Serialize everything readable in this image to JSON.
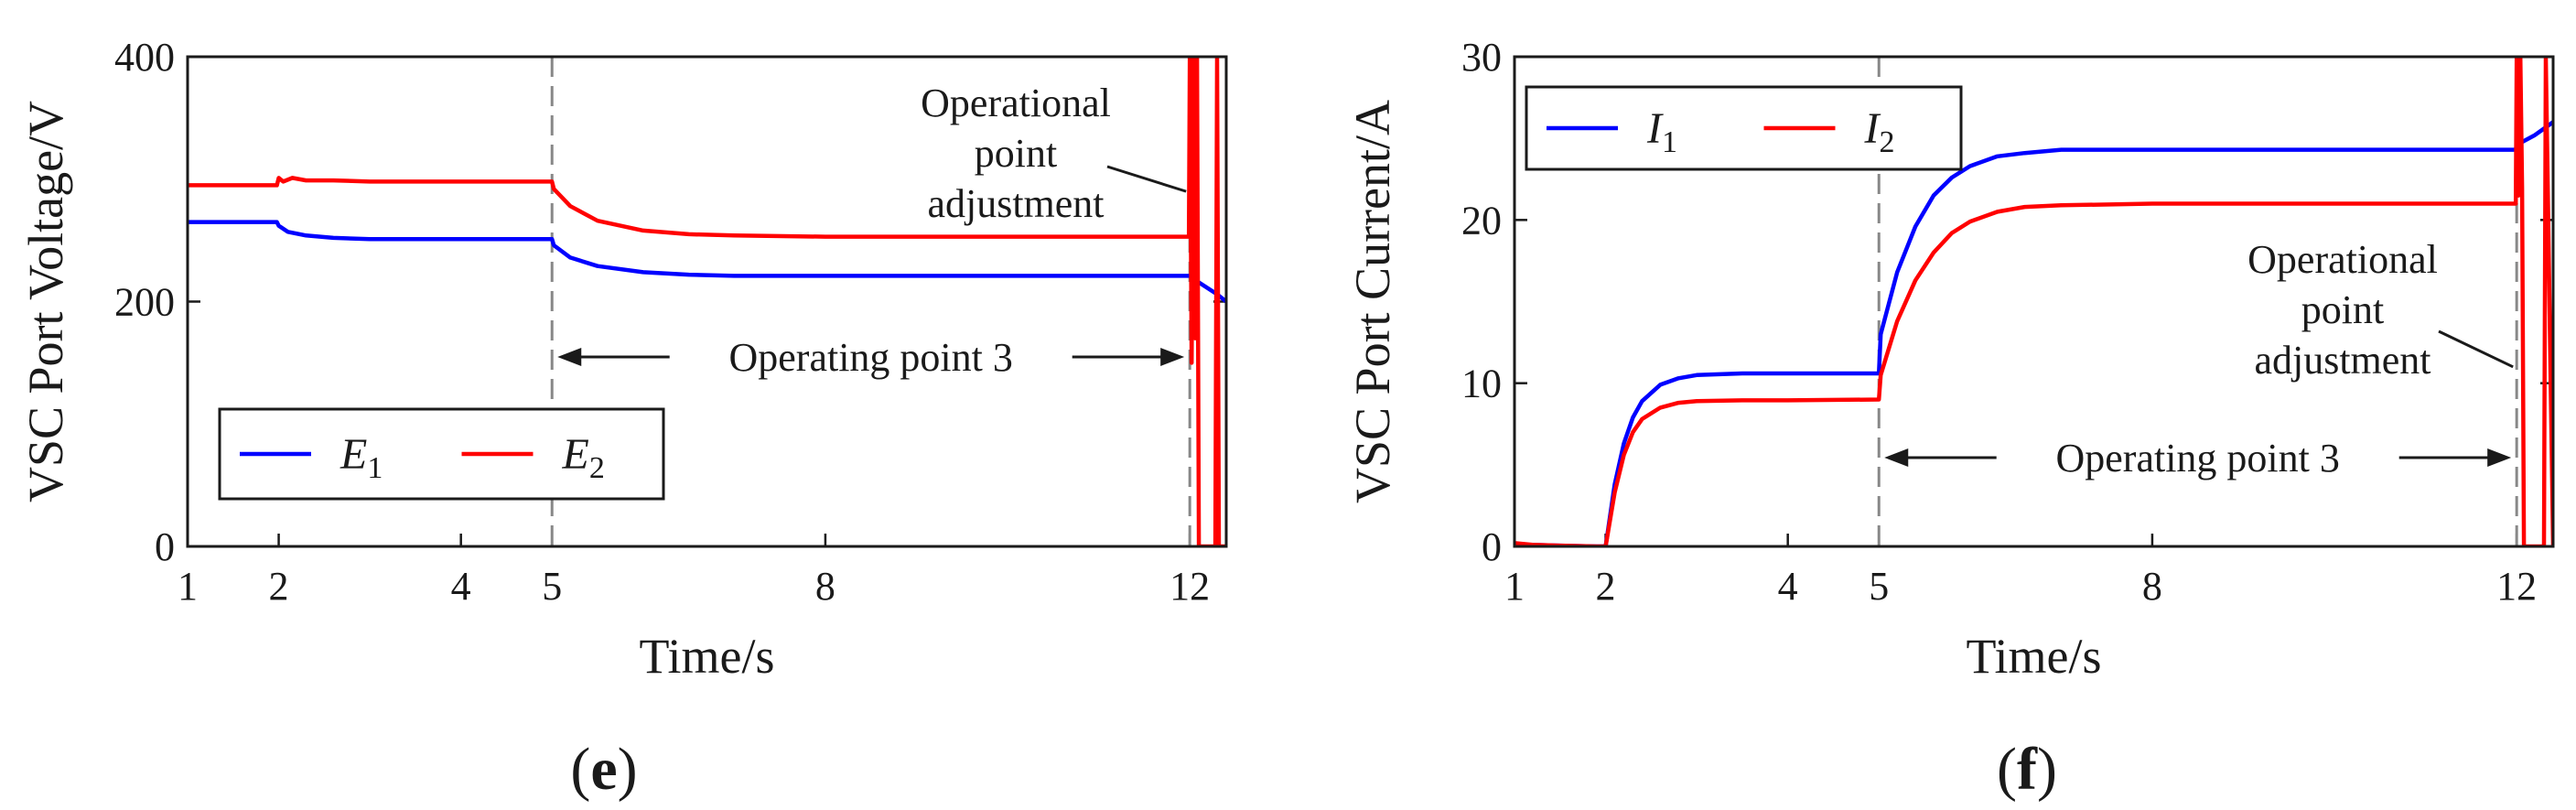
{
  "chart_data": [
    {
      "type": "line",
      "panel_label": "(e)",
      "xlabel": "Time/s",
      "ylabel": "VSC Port Voltage/V",
      "xlim": [
        1,
        12.4
      ],
      "ylim": [
        0,
        400
      ],
      "xticks": [
        1,
        2,
        4,
        5,
        8,
        12
      ],
      "yticks": [
        0,
        200,
        400
      ],
      "dashed_markers": [
        5,
        12
      ],
      "arrow_label": "Operating point 3",
      "arrow_span": [
        5,
        12
      ],
      "annotation": {
        "lines": [
          "Operational",
          "point",
          "adjustment"
        ],
        "points_to": [
          12,
          290
        ]
      },
      "legend": {
        "position": "bottom-left"
      },
      "series": [
        {
          "label": "E",
          "sub": "1",
          "color": "#0000ff",
          "x": [
            1,
            1.5,
            1.98,
            2.0,
            2.1,
            2.3,
            2.6,
            3,
            4,
            5,
            5.02,
            5.2,
            5.5,
            6,
            6.5,
            7,
            8,
            10,
            12,
            12.05,
            12.3,
            12.4
          ],
          "y": [
            265,
            265,
            265,
            262,
            257,
            254,
            252,
            251,
            251,
            251,
            246,
            236,
            229,
            224,
            222,
            221,
            221,
            221,
            221,
            218,
            206,
            200
          ]
        },
        {
          "label": "E",
          "sub": "2",
          "color": "#ff0000",
          "x": [
            1,
            1.5,
            1.98,
            2.0,
            2.05,
            2.15,
            2.3,
            2.6,
            3,
            4,
            5,
            5.02,
            5.2,
            5.5,
            6,
            6.5,
            7,
            8,
            10,
            11.99,
            12.0,
            12.02,
            12.04,
            12.06,
            12.08,
            12.1,
            12.28,
            12.3,
            12.32,
            12.4
          ],
          "y": [
            295,
            295,
            295,
            301,
            298,
            301,
            299,
            299,
            298,
            298,
            298,
            292,
            278,
            266,
            258,
            255,
            254,
            253,
            253,
            253,
            400,
            150,
            400,
            170,
            400,
            0,
            0,
            400,
            0,
            0
          ]
        }
      ]
    },
    {
      "type": "line",
      "panel_label": "(f)",
      "xlabel": "Time/s",
      "ylabel": "VSC Port Current/A",
      "xlim": [
        1,
        12.4
      ],
      "ylim": [
        0,
        30
      ],
      "xticks": [
        1,
        2,
        4,
        5,
        8,
        12
      ],
      "yticks": [
        0,
        10,
        20,
        30
      ],
      "dashed_markers": [
        5,
        12
      ],
      "arrow_label": "Operating point 3",
      "arrow_span": [
        5,
        12
      ],
      "annotation": {
        "lines": [
          "Operational",
          "point",
          "adjustment"
        ],
        "points_to": [
          12,
          11
        ]
      },
      "legend": {
        "position": "top-left"
      },
      "series": [
        {
          "label": "I",
          "sub": "1",
          "color": "#0000ff",
          "x": [
            1,
            1.2,
            1.5,
            1.9,
            2.0,
            2.1,
            2.2,
            2.3,
            2.4,
            2.6,
            2.8,
            3.0,
            3.5,
            4,
            5,
            5.02,
            5.2,
            5.4,
            5.6,
            5.8,
            6.0,
            6.3,
            6.6,
            7,
            8,
            10,
            11.99,
            12.0,
            12.1,
            12.2,
            12.3,
            12.4
          ],
          "y": [
            0.1,
            0.1,
            0.05,
            0,
            0,
            3.8,
            6.3,
            7.9,
            8.9,
            9.9,
            10.3,
            10.5,
            10.6,
            10.6,
            10.6,
            13.0,
            16.8,
            19.6,
            21.5,
            22.6,
            23.3,
            23.9,
            24.1,
            24.3,
            24.3,
            24.3,
            24.3,
            24.6,
            24.9,
            25.2,
            25.6,
            26.0
          ]
        },
        {
          "label": "I",
          "sub": "2",
          "color": "#ff0000",
          "x": [
            1,
            1.2,
            1.5,
            1.9,
            2.0,
            2.1,
            2.2,
            2.3,
            2.4,
            2.6,
            2.8,
            3.0,
            3.5,
            4,
            5,
            5.02,
            5.2,
            5.4,
            5.6,
            5.8,
            6.0,
            6.3,
            6.6,
            7,
            8,
            10,
            11.99,
            12.0,
            12.02,
            12.04,
            12.06,
            12.08,
            12.3,
            12.32,
            12.4
          ],
          "y": [
            0.2,
            0.1,
            0.05,
            0,
            0,
            3.3,
            5.6,
            7.0,
            7.8,
            8.5,
            8.8,
            8.9,
            8.95,
            8.95,
            9.0,
            10.5,
            13.8,
            16.3,
            18.0,
            19.2,
            19.9,
            20.5,
            20.8,
            20.9,
            21.0,
            21.0,
            21.0,
            30,
            21.5,
            30,
            22,
            0,
            0,
            30,
            0
          ]
        }
      ]
    }
  ]
}
